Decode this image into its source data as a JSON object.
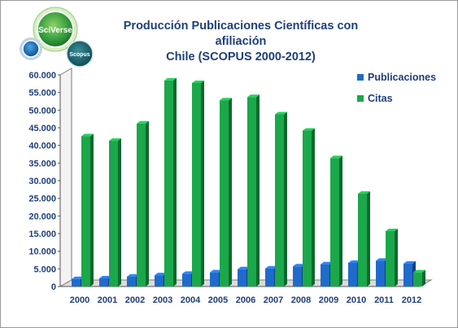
{
  "logos": {
    "sciverse_label": "SciVerse",
    "scopus_label": "Scopus"
  },
  "chart_data": {
    "type": "bar",
    "title_line1": "Producción Publicaciones Científicas con afiliación",
    "title_line2": "Chile (SCOPUS 2000-2012)",
    "categories": [
      "2000",
      "2001",
      "2002",
      "2003",
      "2004",
      "2005",
      "2006",
      "2007",
      "2008",
      "2009",
      "2010",
      "2011",
      "2012"
    ],
    "series": [
      {
        "name": "Publicaciones",
        "color": "#1f6bcc",
        "values": [
          2100,
          2300,
          2800,
          3200,
          3600,
          4000,
          4900,
          5100,
          5700,
          6300,
          6700,
          7300,
          6500
        ]
      },
      {
        "name": "Citas",
        "color": "#1aa84a",
        "values": [
          42600,
          41300,
          46200,
          58400,
          57700,
          52800,
          53700,
          48800,
          44200,
          36400,
          26300,
          15700,
          4000
        ]
      }
    ],
    "ylim": [
      0,
      60000
    ],
    "yticks": [
      "0",
      "5.000",
      "10.000",
      "15.000",
      "20.000",
      "25.000",
      "30.000",
      "35.000",
      "40.000",
      "45.000",
      "50.000",
      "55.000",
      "60.000"
    ],
    "legend_position": "top-right",
    "grid": false
  }
}
